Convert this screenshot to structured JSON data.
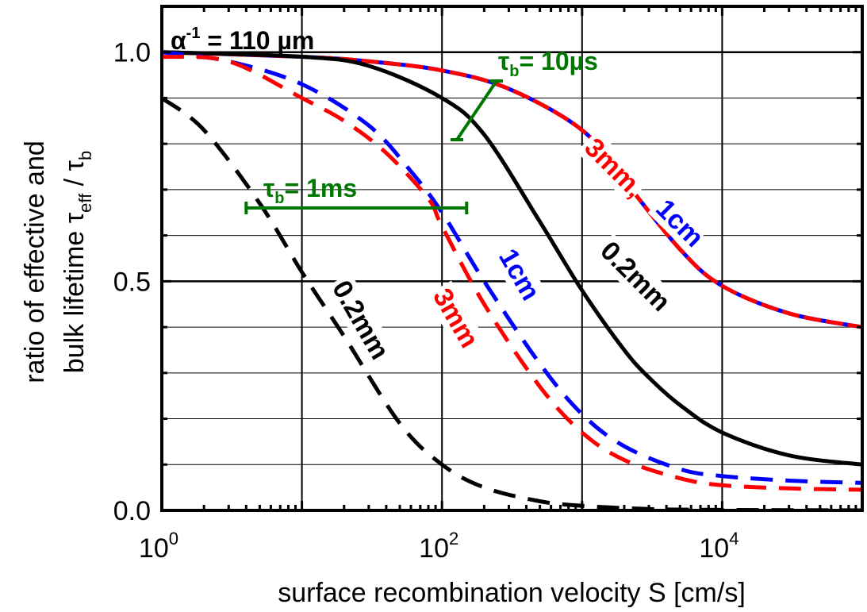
{
  "chart_data": {
    "type": "line",
    "xscale": "log",
    "xlim": [
      1,
      100000
    ],
    "ylim": [
      0,
      1.1
    ],
    "grid": true,
    "xlabel": "surface recombination velocity S [cm/s]",
    "ylabel_line1": "ratio of effective and",
    "ylabel_line2_prefix": "bulk lifetime τ",
    "ylabel_sub1": "eff",
    "ylabel_mid": " / τ",
    "ylabel_sub2": "b",
    "x_ticks": [
      {
        "value": 1,
        "base": "10",
        "exp": "0"
      },
      {
        "value": 100,
        "base": "10",
        "exp": "2"
      },
      {
        "value": 10000,
        "base": "10",
        "exp": "4"
      }
    ],
    "y_ticks": [
      {
        "value": 0.0,
        "label": "0.0"
      },
      {
        "value": 0.5,
        "label": "0.5"
      },
      {
        "value": 1.0,
        "label": "1.0"
      }
    ],
    "annotation_alpha": {
      "prefix": "α",
      "sup": "-1",
      "text": " = 110 µm"
    },
    "annotation_tau_10us": {
      "prefix": "τ",
      "sub": "b",
      "text": "= 10µs"
    },
    "annotation_tau_1ms": {
      "prefix": "τ",
      "sub": "b",
      "text": "= 1ms"
    },
    "colors": {
      "black": "#000000",
      "red": "#ff0000",
      "blue": "#0000ff",
      "green": "#007700"
    },
    "series": [
      {
        "group": "τb = 10µs",
        "thickness": "3mm, 1cm",
        "style": "solid",
        "x": [
          1,
          10,
          30,
          100,
          300,
          1000,
          2000,
          5000,
          10000,
          30000,
          100000
        ],
        "y": [
          1.0,
          0.99,
          0.98,
          0.96,
          0.92,
          0.83,
          0.72,
          0.57,
          0.49,
          0.43,
          0.4
        ]
      },
      {
        "group": "τb = 10µs",
        "thickness": "0.2mm",
        "style": "solid",
        "x": [
          1,
          10,
          30,
          100,
          200,
          500,
          1000,
          2000,
          3000,
          5000,
          10000,
          30000,
          100000
        ],
        "y": [
          1.0,
          0.99,
          0.97,
          0.9,
          0.82,
          0.63,
          0.48,
          0.35,
          0.29,
          0.23,
          0.17,
          0.12,
          0.1
        ]
      },
      {
        "group": "τb = 1ms",
        "thickness": "1cm",
        "style": "dashed",
        "x": [
          1,
          3,
          10,
          30,
          60,
          100,
          200,
          500,
          1000,
          2000,
          5000,
          10000,
          30000,
          100000
        ],
        "y": [
          1.0,
          0.98,
          0.93,
          0.84,
          0.74,
          0.65,
          0.5,
          0.32,
          0.21,
          0.14,
          0.09,
          0.075,
          0.065,
          0.06
        ]
      },
      {
        "group": "τb = 1ms",
        "thickness": "3mm",
        "style": "dashed",
        "x": [
          1,
          3,
          10,
          20,
          40,
          80,
          100,
          200,
          500,
          1000,
          2000,
          5000,
          10000,
          30000,
          100000
        ],
        "y": [
          0.99,
          0.98,
          0.9,
          0.85,
          0.78,
          0.68,
          0.62,
          0.45,
          0.27,
          0.17,
          0.11,
          0.07,
          0.055,
          0.048,
          0.045
        ]
      },
      {
        "group": "τb = 1ms",
        "thickness": "0.2mm",
        "style": "dashed",
        "x": [
          1,
          2,
          5,
          10,
          20,
          50,
          100,
          200,
          500,
          1000,
          3000,
          10000,
          100000
        ],
        "y": [
          0.9,
          0.83,
          0.67,
          0.52,
          0.38,
          0.19,
          0.1,
          0.05,
          0.02,
          0.01,
          0.003,
          0.001,
          0.0
        ]
      }
    ],
    "curve_labels": [
      {
        "text": "3mm,",
        "color": "red"
      },
      {
        "text": "1cm",
        "color": "blue"
      },
      {
        "text": "0.2mm",
        "color": "black"
      },
      {
        "text": "1cm",
        "color": "blue"
      },
      {
        "text": "3mm",
        "color": "red"
      },
      {
        "text": "0.2mm",
        "color": "black"
      }
    ]
  }
}
